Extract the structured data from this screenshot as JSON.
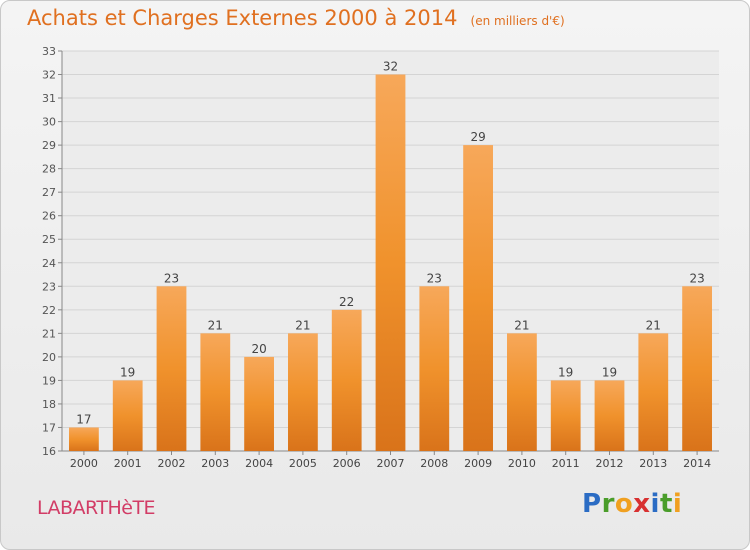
{
  "chart_data": {
    "type": "bar",
    "title": "Achats et Charges Externes 2000 à 2014",
    "subtitle": "(en milliers d'€)",
    "categories": [
      "2000",
      "2001",
      "2002",
      "2003",
      "2004",
      "2005",
      "2006",
      "2007",
      "2008",
      "2009",
      "2010",
      "2011",
      "2012",
      "2013",
      "2014"
    ],
    "values": [
      17,
      19,
      23,
      21,
      20,
      21,
      22,
      32,
      23,
      29,
      21,
      19,
      19,
      21,
      23
    ],
    "data_labels": [
      "17",
      "19",
      "23",
      "21",
      "20",
      "21",
      "22",
      "32",
      "23",
      "29",
      "21",
      "19",
      "19",
      "21",
      "23"
    ],
    "ylim": [
      16,
      33
    ],
    "yticks": [
      16,
      17,
      18,
      19,
      20,
      21,
      22,
      23,
      24,
      25,
      26,
      27,
      28,
      29,
      30,
      31,
      32,
      33
    ],
    "xlabel": "",
    "ylabel": "",
    "grid": true,
    "colors": {
      "bar": "#f0922c",
      "bar_light": "#f7a85a",
      "bar_dark": "#d9731a",
      "title": "#e07020"
    }
  },
  "location": "LABARTHèTE",
  "brand": {
    "letters": [
      "P",
      "r",
      "o",
      "x",
      "i",
      "t",
      "i"
    ],
    "colors": [
      "#2b6cc4",
      "#4a9d2a",
      "#f0a020",
      "#d83030",
      "#2b6cc4",
      "#4a9d2a",
      "#f0a020"
    ]
  }
}
